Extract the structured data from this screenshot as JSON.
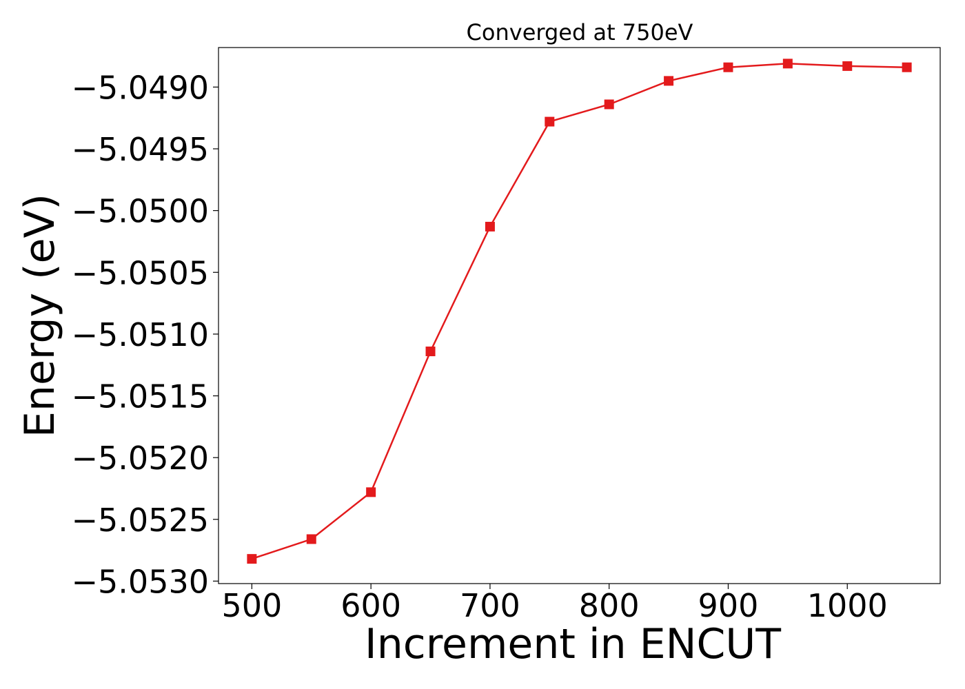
{
  "chart_data": {
    "type": "line",
    "title": "Converged at 750eV",
    "xlabel": "Increment in ENCUT",
    "ylabel": "Energy (eV)",
    "xlim": [
      472,
      1078
    ],
    "ylim": [
      -5.05302,
      -5.04868
    ],
    "x_ticks": [
      500,
      600,
      700,
      800,
      900,
      1000
    ],
    "x_tick_labels": [
      "500",
      "600",
      "700",
      "800",
      "900",
      "1000"
    ],
    "y_ticks": [
      -5.049,
      -5.0495,
      -5.05,
      -5.0505,
      -5.051,
      -5.0515,
      -5.052,
      -5.0525,
      -5.053
    ],
    "y_tick_labels": [
      "−5.0490",
      "−5.0495",
      "−5.0500",
      "−5.0505",
      "−5.0510",
      "−5.0515",
      "−5.0520",
      "−5.0525",
      "−5.0530"
    ],
    "grid": false,
    "series": [
      {
        "color": "#e31a1c",
        "marker": "square",
        "x": [
          500,
          550,
          600,
          650,
          700,
          750,
          800,
          850,
          900,
          950,
          1000,
          1050
        ],
        "y": [
          -5.05282,
          -5.05266,
          -5.05228,
          -5.05114,
          -5.05013,
          -5.04928,
          -5.04914,
          -5.04895,
          -5.04884,
          -5.04881,
          -5.04883,
          -5.04884
        ]
      }
    ]
  }
}
